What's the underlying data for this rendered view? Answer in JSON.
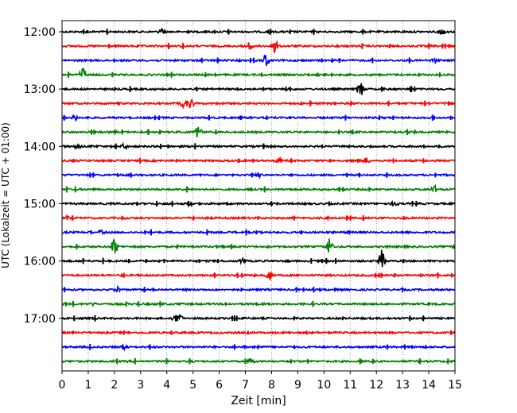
{
  "chart_data": {
    "type": "line",
    "title": "",
    "xlabel": "Zeit  [min]",
    "ylabel": "UTC (Lokalzeit = UTC + 01:00)",
    "xlim": [
      0,
      15
    ],
    "x_ticks": [
      "0",
      "1",
      "2",
      "3",
      "4",
      "5",
      "6",
      "7",
      "8",
      "9",
      "10",
      "11",
      "12",
      "13",
      "14",
      "15"
    ],
    "y_tick_labels": [
      "12:00",
      "13:00",
      "14:00",
      "15:00",
      "16:00",
      "17:00"
    ],
    "grid": "vertical dotted at each minute",
    "trace_interval_minutes": 15,
    "trace_colors": [
      "#000000",
      "#ff0000",
      "#0000ff",
      "#008000"
    ],
    "traces": [
      {
        "start": "12:00",
        "color": "#000000",
        "events": [
          [
            3.8,
            0.3
          ],
          [
            14.5,
            0.4
          ]
        ]
      },
      {
        "start": "12:15",
        "color": "#ff0000",
        "events": [
          [
            7.2,
            0.5
          ],
          [
            8.1,
            0.9
          ]
        ]
      },
      {
        "start": "12:30",
        "color": "#0000ff",
        "events": [
          [
            7.8,
            0.7
          ],
          [
            14.2,
            0.3
          ]
        ]
      },
      {
        "start": "12:45",
        "color": "#008000",
        "events": [
          [
            0.8,
            0.8
          ]
        ]
      },
      {
        "start": "13:00",
        "color": "#000000",
        "events": [
          [
            11.4,
            0.8
          ]
        ]
      },
      {
        "start": "13:15",
        "color": "#ff0000",
        "events": [
          [
            4.6,
            0.4
          ],
          [
            4.9,
            0.5
          ]
        ]
      },
      {
        "start": "13:30",
        "color": "#0000ff",
        "events": [
          [
            0.5,
            0.3
          ],
          [
            8.6,
            0.2
          ]
        ]
      },
      {
        "start": "13:45",
        "color": "#008000",
        "events": [
          [
            5.2,
            0.6
          ]
        ]
      },
      {
        "start": "14:00",
        "color": "#000000",
        "events": [
          [
            0.6,
            0.3
          ],
          [
            2.4,
            0.3
          ]
        ]
      },
      {
        "start": "14:15",
        "color": "#ff0000",
        "events": [
          [
            8.3,
            0.3
          ],
          [
            11.6,
            0.3
          ]
        ]
      },
      {
        "start": "14:30",
        "color": "#0000ff",
        "events": [
          [
            7.5,
            0.2
          ]
        ]
      },
      {
        "start": "14:45",
        "color": "#008000",
        "events": [
          [
            14.2,
            0.4
          ]
        ]
      },
      {
        "start": "15:00",
        "color": "#000000",
        "events": [
          [
            4.9,
            0.3
          ],
          [
            12.7,
            0.3
          ]
        ]
      },
      {
        "start": "15:15",
        "color": "#ff0000",
        "events": [
          [
            0.2,
            0.2
          ],
          [
            10.1,
            0.2
          ]
        ]
      },
      {
        "start": "15:30",
        "color": "#0000ff",
        "events": [
          [
            1.5,
            0.2
          ]
        ]
      },
      {
        "start": "15:45",
        "color": "#008000",
        "events": [
          [
            2.0,
            0.9
          ],
          [
            10.2,
            0.8
          ]
        ]
      },
      {
        "start": "16:00",
        "color": "#000000",
        "events": [
          [
            12.2,
            1.0
          ],
          [
            6.9,
            0.3
          ]
        ]
      },
      {
        "start": "16:15",
        "color": "#ff0000",
        "events": [
          [
            7.9,
            0.7
          ]
        ]
      },
      {
        "start": "16:30",
        "color": "#0000ff",
        "events": [
          [
            2.1,
            0.3
          ]
        ]
      },
      {
        "start": "16:45",
        "color": "#008000",
        "events": [
          [
            1.2,
            0.2
          ]
        ]
      },
      {
        "start": "17:00",
        "color": "#000000",
        "events": [
          [
            4.3,
            0.3
          ],
          [
            4.5,
            0.3
          ]
        ]
      },
      {
        "start": "17:15",
        "color": "#ff0000",
        "events": []
      },
      {
        "start": "17:30",
        "color": "#0000ff",
        "events": [
          [
            2.4,
            0.3
          ]
        ]
      },
      {
        "start": "17:45",
        "color": "#008000",
        "events": [
          [
            7.2,
            0.3
          ]
        ]
      }
    ]
  }
}
